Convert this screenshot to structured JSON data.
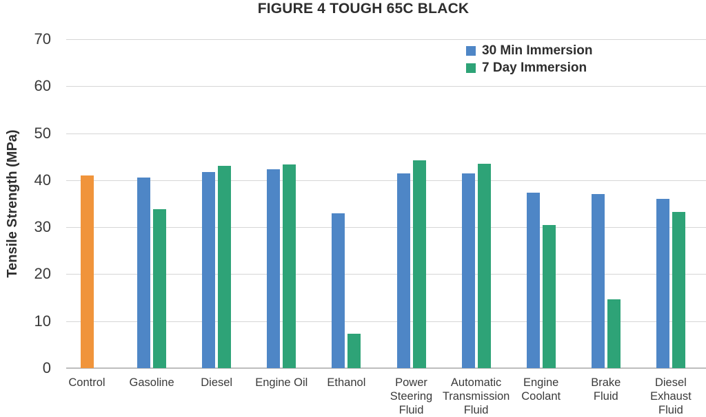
{
  "chart_data": {
    "type": "bar",
    "title": "FIGURE 4 TOUGH 65C BLACK",
    "xlabel": "",
    "ylabel": "Tensile Strength (MPa)",
    "ylim": [
      0,
      70
    ],
    "yticks": [
      0,
      10,
      20,
      30,
      40,
      50,
      60,
      70
    ],
    "grid": "horizontal",
    "legend_position": "top-right-inside",
    "categories": [
      "Control",
      "Gasoline",
      "Diesel",
      "Engine Oil",
      "Ethanol",
      "Power Steering Fluid",
      "Automatic Transmission Fluid",
      "Engine Coolant",
      "Brake Fluid",
      "Diesel Exhaust Fluid"
    ],
    "xtick_lines": [
      [
        "Control"
      ],
      [
        "Gasoline"
      ],
      [
        "Diesel"
      ],
      [
        "Engine Oil"
      ],
      [
        "Ethanol"
      ],
      [
        "Power",
        "Steering",
        "Fluid"
      ],
      [
        "Automatic",
        "Transmission",
        "Fluid"
      ],
      [
        "Engine",
        "Coolant"
      ],
      [
        "Brake",
        "Fluid"
      ],
      [
        "Diesel",
        "Exhaust",
        "Fluid"
      ]
    ],
    "control": {
      "label": "Control",
      "value": 41.0,
      "color": "#F0943B"
    },
    "series": [
      {
        "name": "30 Min Immersion",
        "color": "#4E86C6",
        "values": [
          null,
          40.6,
          41.8,
          42.3,
          33.0,
          41.4,
          41.4,
          37.3,
          37.1,
          36.0
        ]
      },
      {
        "name": "7 Day Immersion",
        "color": "#2EA377",
        "values": [
          null,
          33.9,
          43.0,
          43.4,
          7.3,
          44.2,
          43.5,
          30.5,
          14.7,
          33.2
        ]
      }
    ]
  },
  "colors": {
    "bar_control": "#F0943B",
    "bar_30min": "#4E86C6",
    "bar_7day": "#2EA377",
    "gridline": "#D6D6D6",
    "axis_line": "#BDBDBD",
    "text": "#303030"
  }
}
